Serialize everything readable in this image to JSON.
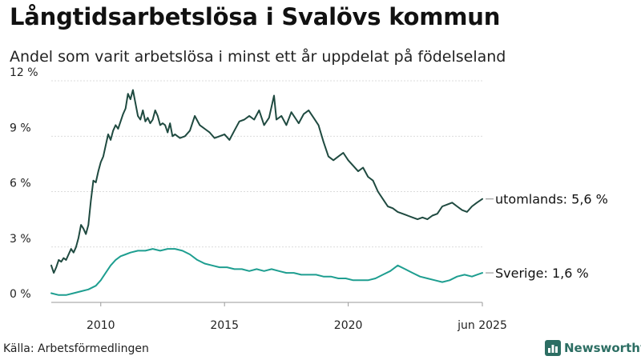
{
  "title": "Långtidsarbetslösa i Svalövs kommun",
  "subtitle": "Andel som varit arbetslösa i minst ett år uppdelat på födelseland",
  "source": "Källa: Arbetsförmedlingen",
  "brand": "Newsworthy",
  "colors": {
    "utomlands": "#1f4a40",
    "sverige": "#1e9e90",
    "grid": "#cfcfcf",
    "brand": "#2c6e63"
  },
  "chart_data": {
    "type": "line",
    "xlim": [
      2008.0,
      2025.42
    ],
    "ylim": [
      0,
      12
    ],
    "y_ticks": [
      {
        "value": 0,
        "label": "0 %"
      },
      {
        "value": 3,
        "label": "3 %"
      },
      {
        "value": 6,
        "label": "6 %"
      },
      {
        "value": 9,
        "label": "9 %"
      },
      {
        "value": 12,
        "label": "12 %"
      }
    ],
    "x_ticks": [
      {
        "value": 2010,
        "label": "2010"
      },
      {
        "value": 2015,
        "label": "2015"
      },
      {
        "value": 2020,
        "label": "2020"
      },
      {
        "value": 2025.42,
        "label": "jun 2025"
      }
    ],
    "grid": "horizontal",
    "series": [
      {
        "key": "utomlands",
        "label": "utomlands: 5,6 %",
        "x": [
          2008.0,
          2008.1,
          2008.2,
          2008.3,
          2008.4,
          2008.5,
          2008.6,
          2008.7,
          2008.8,
          2008.9,
          2009.0,
          2009.1,
          2009.2,
          2009.3,
          2009.4,
          2009.5,
          2009.6,
          2009.7,
          2009.8,
          2009.9,
          2010.0,
          2010.1,
          2010.2,
          2010.3,
          2010.4,
          2010.5,
          2010.6,
          2010.7,
          2010.8,
          2010.9,
          2011.0,
          2011.1,
          2011.2,
          2011.3,
          2011.4,
          2011.5,
          2011.6,
          2011.7,
          2011.8,
          2011.9,
          2012.0,
          2012.1,
          2012.2,
          2012.3,
          2012.4,
          2012.5,
          2012.6,
          2012.7,
          2012.8,
          2012.9,
          2013.0,
          2013.2,
          2013.4,
          2013.6,
          2013.8,
          2014.0,
          2014.2,
          2014.4,
          2014.6,
          2014.8,
          2015.0,
          2015.2,
          2015.4,
          2015.6,
          2015.8,
          2016.0,
          2016.2,
          2016.4,
          2016.6,
          2016.8,
          2017.0,
          2017.1,
          2017.3,
          2017.5,
          2017.7,
          2017.9,
          2018.0,
          2018.2,
          2018.4,
          2018.6,
          2018.8,
          2019.0,
          2019.2,
          2019.4,
          2019.6,
          2019.8,
          2020.0,
          2020.2,
          2020.4,
          2020.6,
          2020.8,
          2021.0,
          2021.2,
          2021.4,
          2021.6,
          2021.8,
          2022.0,
          2022.2,
          2022.4,
          2022.6,
          2022.8,
          2023.0,
          2023.2,
          2023.4,
          2023.6,
          2023.8,
          2024.0,
          2024.2,
          2024.4,
          2024.6,
          2024.8,
          2025.0,
          2025.2,
          2025.42
        ],
        "y": [
          2.0,
          1.6,
          1.9,
          2.3,
          2.2,
          2.4,
          2.3,
          2.6,
          2.9,
          2.7,
          3.0,
          3.5,
          4.2,
          4.0,
          3.7,
          4.2,
          5.5,
          6.6,
          6.5,
          7.1,
          7.6,
          7.9,
          8.5,
          9.1,
          8.8,
          9.3,
          9.6,
          9.4,
          9.8,
          10.2,
          10.5,
          11.3,
          11.0,
          11.5,
          10.8,
          10.1,
          9.9,
          10.4,
          9.8,
          10.0,
          9.7,
          9.9,
          10.4,
          10.1,
          9.6,
          9.7,
          9.6,
          9.2,
          9.7,
          9.0,
          9.1,
          8.9,
          9.0,
          9.3,
          10.1,
          9.6,
          9.4,
          9.2,
          8.9,
          9.0,
          9.1,
          8.8,
          9.3,
          9.8,
          9.9,
          10.1,
          9.9,
          10.4,
          9.6,
          10.0,
          11.2,
          9.9,
          10.1,
          9.6,
          10.3,
          9.9,
          9.7,
          10.2,
          10.4,
          10.0,
          9.6,
          8.7,
          7.9,
          7.7,
          7.9,
          8.1,
          7.7,
          7.4,
          7.1,
          7.3,
          6.8,
          6.6,
          6.0,
          5.6,
          5.2,
          5.1,
          4.9,
          4.8,
          4.7,
          4.6,
          4.5,
          4.6,
          4.5,
          4.7,
          4.8,
          5.2,
          5.3,
          5.4,
          5.2,
          5.0,
          4.9,
          5.2,
          5.4,
          5.6
        ]
      },
      {
        "key": "sverige",
        "label": "Sverige: 1,6 %",
        "x": [
          2008.0,
          2008.3,
          2008.6,
          2008.9,
          2009.2,
          2009.5,
          2009.8,
          2010.0,
          2010.2,
          2010.4,
          2010.6,
          2010.8,
          2011.0,
          2011.2,
          2011.5,
          2011.8,
          2012.1,
          2012.4,
          2012.7,
          2013.0,
          2013.3,
          2013.6,
          2013.9,
          2014.2,
          2014.5,
          2014.8,
          2015.1,
          2015.4,
          2015.7,
          2016.0,
          2016.3,
          2016.6,
          2016.9,
          2017.2,
          2017.5,
          2017.8,
          2018.1,
          2018.4,
          2018.7,
          2019.0,
          2019.3,
          2019.6,
          2019.9,
          2020.2,
          2020.5,
          2020.8,
          2021.1,
          2021.4,
          2021.7,
          2022.0,
          2022.3,
          2022.6,
          2022.9,
          2023.2,
          2023.5,
          2023.8,
          2024.1,
          2024.4,
          2024.7,
          2025.0,
          2025.2,
          2025.42
        ],
        "y": [
          0.5,
          0.4,
          0.4,
          0.5,
          0.6,
          0.7,
          0.9,
          1.2,
          1.6,
          2.0,
          2.3,
          2.5,
          2.6,
          2.7,
          2.8,
          2.8,
          2.9,
          2.8,
          2.9,
          2.9,
          2.8,
          2.6,
          2.3,
          2.1,
          2.0,
          1.9,
          1.9,
          1.8,
          1.8,
          1.7,
          1.8,
          1.7,
          1.8,
          1.7,
          1.6,
          1.6,
          1.5,
          1.5,
          1.5,
          1.4,
          1.4,
          1.3,
          1.3,
          1.2,
          1.2,
          1.2,
          1.3,
          1.5,
          1.7,
          2.0,
          1.8,
          1.6,
          1.4,
          1.3,
          1.2,
          1.1,
          1.2,
          1.4,
          1.5,
          1.4,
          1.5,
          1.6
        ]
      }
    ]
  }
}
